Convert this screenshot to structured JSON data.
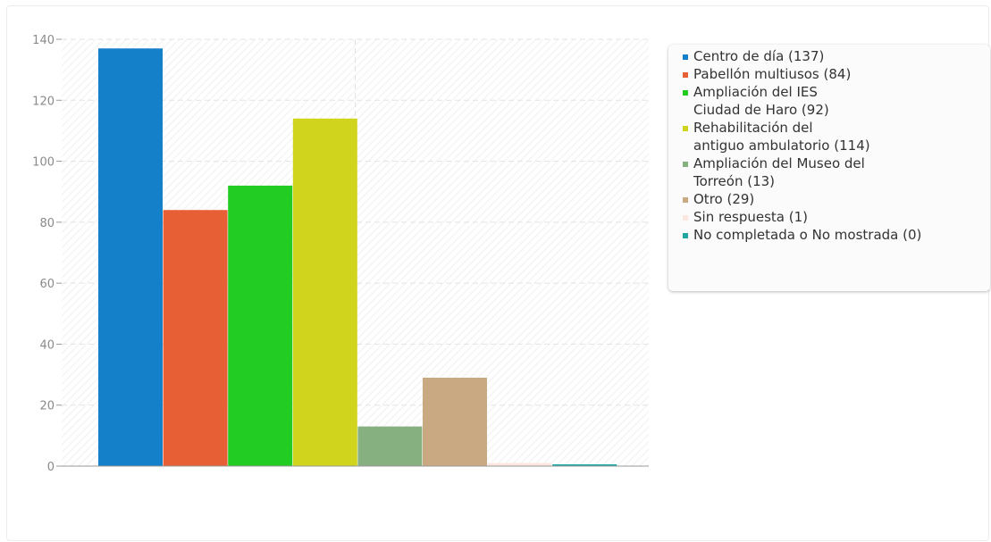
{
  "chart_data": {
    "type": "bar",
    "title": "",
    "xlabel": "",
    "ylabel": "",
    "ylim": [
      0,
      140
    ],
    "yticks": [
      0,
      20,
      40,
      60,
      80,
      100,
      120,
      140
    ],
    "grid": true,
    "legend_position": "right",
    "categories": [
      "Centro de día",
      "Pabellón multiusos",
      "Ampliación del IES Ciudad de Haro",
      "Rehabilitación del antiguo ambulatorio",
      "Ampliación del Museo del Torreón",
      "Otro",
      "Sin respuesta",
      "No completada o No mostrada"
    ],
    "values": [
      137,
      84,
      92,
      114,
      13,
      29,
      1,
      0
    ],
    "colors": [
      "#1380c9",
      "#e65f35",
      "#22cc22",
      "#d1d41c",
      "#86b07f",
      "#c8a982",
      "#fce7e0",
      "#1ea8a4"
    ],
    "legend": [
      "Centro de día (137)",
      "Pabellón multiusos (84)",
      "Ampliación del IES\nCiudad de Haro (92)",
      "Rehabilitación del\nantiguo ambulatorio (114)",
      "Ampliación del Museo del\nTorreón (13)",
      "Otro (29)",
      "Sin respuesta (1)",
      "No completada o No mostrada (0)"
    ]
  }
}
